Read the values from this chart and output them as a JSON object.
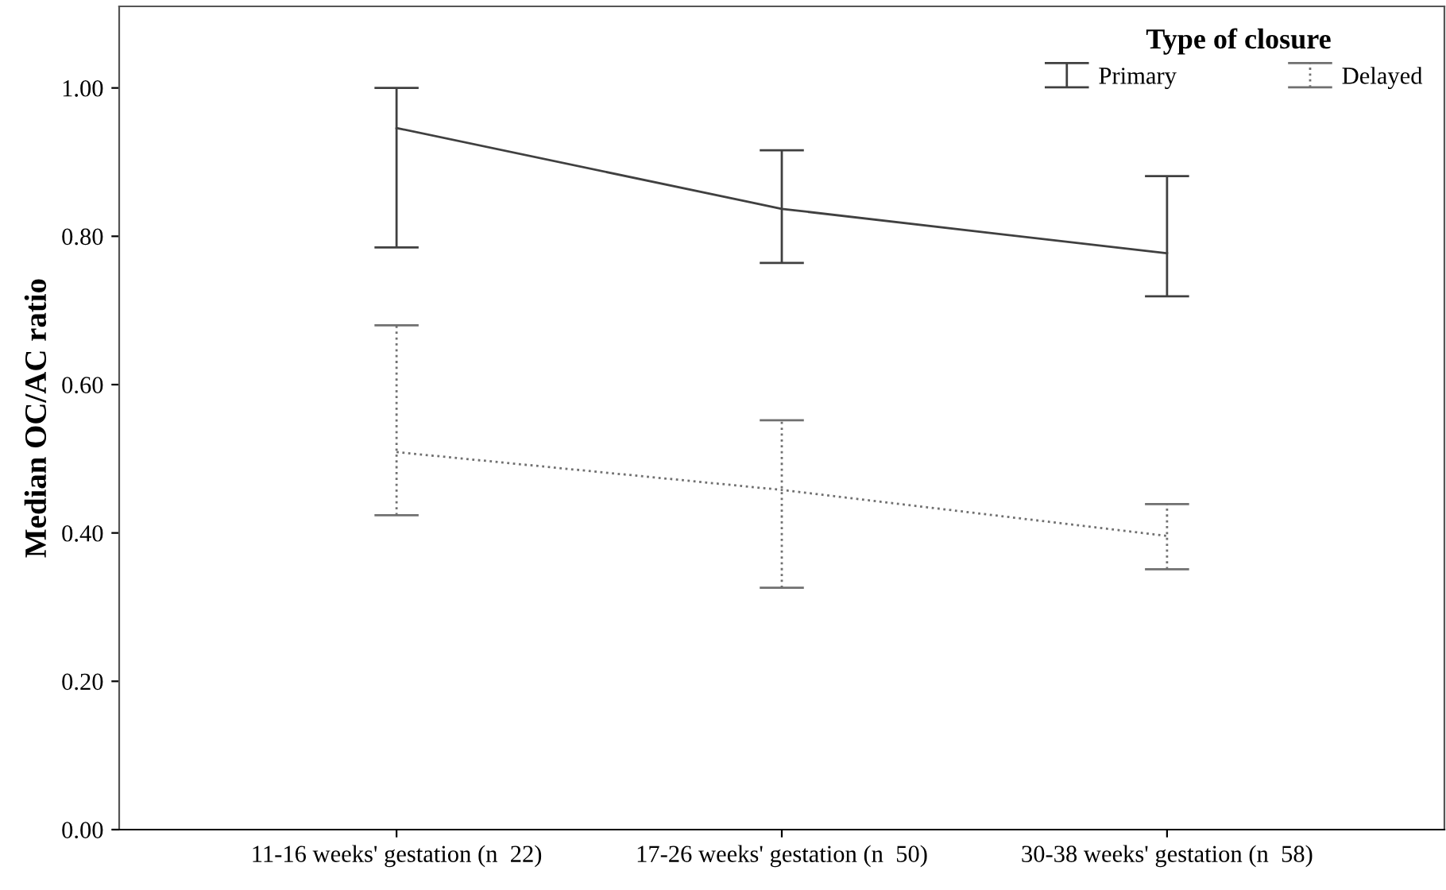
{
  "chart_data": {
    "type": "line",
    "ylabel": "Median OC/AC ratio",
    "legend_title": "Type of closure",
    "categories": [
      "11-16 weeks' gestation (n  22)",
      "17-26 weeks' gestation (n  50)",
      "30-38 weeks' gestation (n  58)"
    ],
    "series": [
      {
        "name": "Primary",
        "color": "#404040",
        "line_style": "solid",
        "values": [
          0.946,
          0.837,
          0.777
        ],
        "errors": [
          [
            0.785,
            1.0
          ],
          [
            0.764,
            0.916
          ],
          [
            0.719,
            0.881
          ]
        ]
      },
      {
        "name": "Delayed",
        "color": "#707070",
        "line_style": "dotted",
        "values": [
          0.509,
          0.458,
          0.396
        ],
        "errors": [
          [
            0.424,
            0.68
          ],
          [
            0.326,
            0.552
          ],
          [
            0.351,
            0.439
          ]
        ]
      }
    ],
    "ylim": [
      0,
      1.11
    ],
    "yticks": [
      {
        "value": 0,
        "label": "0.00"
      },
      {
        "value": 0.2,
        "label": "0.20"
      },
      {
        "value": 0.4,
        "label": "0.40"
      },
      {
        "value": 0.6,
        "label": "0.60"
      },
      {
        "value": 0.8,
        "label": "0.80"
      },
      {
        "value": 1.0,
        "label": "1.00"
      }
    ],
    "grid": false,
    "legend": "top right"
  }
}
